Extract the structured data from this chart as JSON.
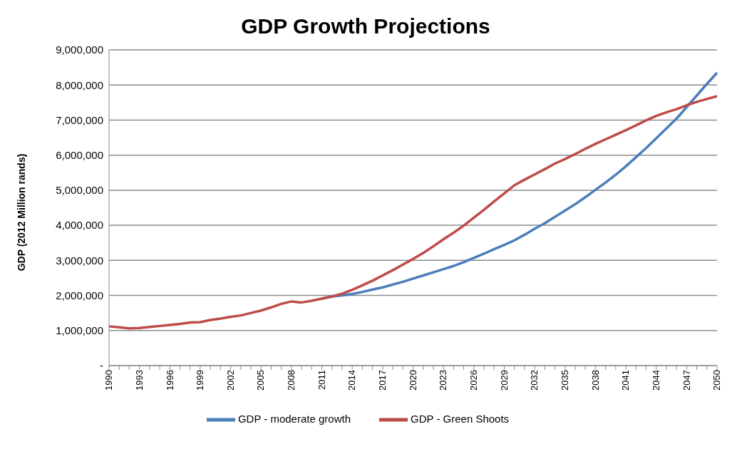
{
  "chart_data": {
    "type": "line",
    "title": "GDP Growth Projections",
    "ylabel": "GDP (2012 Million rands)",
    "categories": [
      "1990",
      null,
      null,
      "1993",
      null,
      null,
      "1996",
      null,
      null,
      "1999",
      null,
      null,
      "2002",
      null,
      null,
      "2005",
      null,
      null,
      "2008",
      null,
      null,
      "2011",
      null,
      null,
      "2014",
      null,
      null,
      "2017",
      null,
      null,
      "2020",
      null,
      null,
      "2023",
      null,
      null,
      "2026",
      null,
      null,
      "2029",
      null,
      null,
      "2032",
      null,
      null,
      "2035",
      null,
      null,
      "2038",
      null,
      null,
      "2041",
      null,
      null,
      "2044",
      null,
      null,
      "2047",
      null,
      null,
      "2050"
    ],
    "series": [
      {
        "name": "GDP - moderate growth",
        "color": "#4a7ebb",
        "values": [
          null,
          null,
          null,
          null,
          null,
          null,
          null,
          null,
          null,
          null,
          null,
          null,
          null,
          null,
          null,
          null,
          null,
          null,
          null,
          null,
          null,
          1910000,
          1970000,
          2000000,
          2040000,
          2100000,
          2170000,
          2230000,
          2310000,
          2390000,
          2480000,
          2570000,
          2660000,
          2750000,
          2840000,
          2950000,
          3070000,
          3190000,
          3320000,
          3440000,
          3570000,
          3730000,
          3900000,
          4060000,
          4240000,
          4420000,
          4600000,
          4800000,
          5010000,
          5220000,
          5440000,
          5680000,
          5940000,
          6200000,
          6480000,
          6760000,
          7040000,
          7370000,
          7700000,
          8030000,
          8350000
        ]
      },
      {
        "name": "GDP - Green Shoots",
        "color": "#be4b48",
        "values": [
          1120000,
          1090000,
          1060000,
          1070000,
          1100000,
          1130000,
          1160000,
          1190000,
          1230000,
          1240000,
          1300000,
          1340000,
          1390000,
          1430000,
          1500000,
          1570000,
          1660000,
          1760000,
          1830000,
          1800000,
          1850000,
          1910000,
          1970000,
          2050000,
          2160000,
          2290000,
          2420000,
          2570000,
          2720000,
          2880000,
          3040000,
          3210000,
          3400000,
          3600000,
          3790000,
          3990000,
          4220000,
          4440000,
          4680000,
          4910000,
          5140000,
          5300000,
          5450000,
          5600000,
          5760000,
          5890000,
          6030000,
          6180000,
          6320000,
          6450000,
          6580000,
          6710000,
          6850000,
          6990000,
          7120000,
          7220000,
          7310000,
          7420000,
          7520000,
          7600000,
          7680000
        ]
      }
    ],
    "ylim": [
      0,
      9000000
    ],
    "yticks": [
      {
        "value": 0,
        "label": "-"
      },
      {
        "value": 1000000,
        "label": "1,000,000"
      },
      {
        "value": 2000000,
        "label": "2,000,000"
      },
      {
        "value": 3000000,
        "label": "3,000,000"
      },
      {
        "value": 4000000,
        "label": "4,000,000"
      },
      {
        "value": 5000000,
        "label": "5,000,000"
      },
      {
        "value": 6000000,
        "label": "6,000,000"
      },
      {
        "value": 7000000,
        "label": "7,000,000"
      },
      {
        "value": 8000000,
        "label": "8,000,000"
      },
      {
        "value": 9000000,
        "label": "9,000,000"
      }
    ],
    "grid": "y",
    "legend": "bottom",
    "marker": "none",
    "line_style": "solid"
  }
}
